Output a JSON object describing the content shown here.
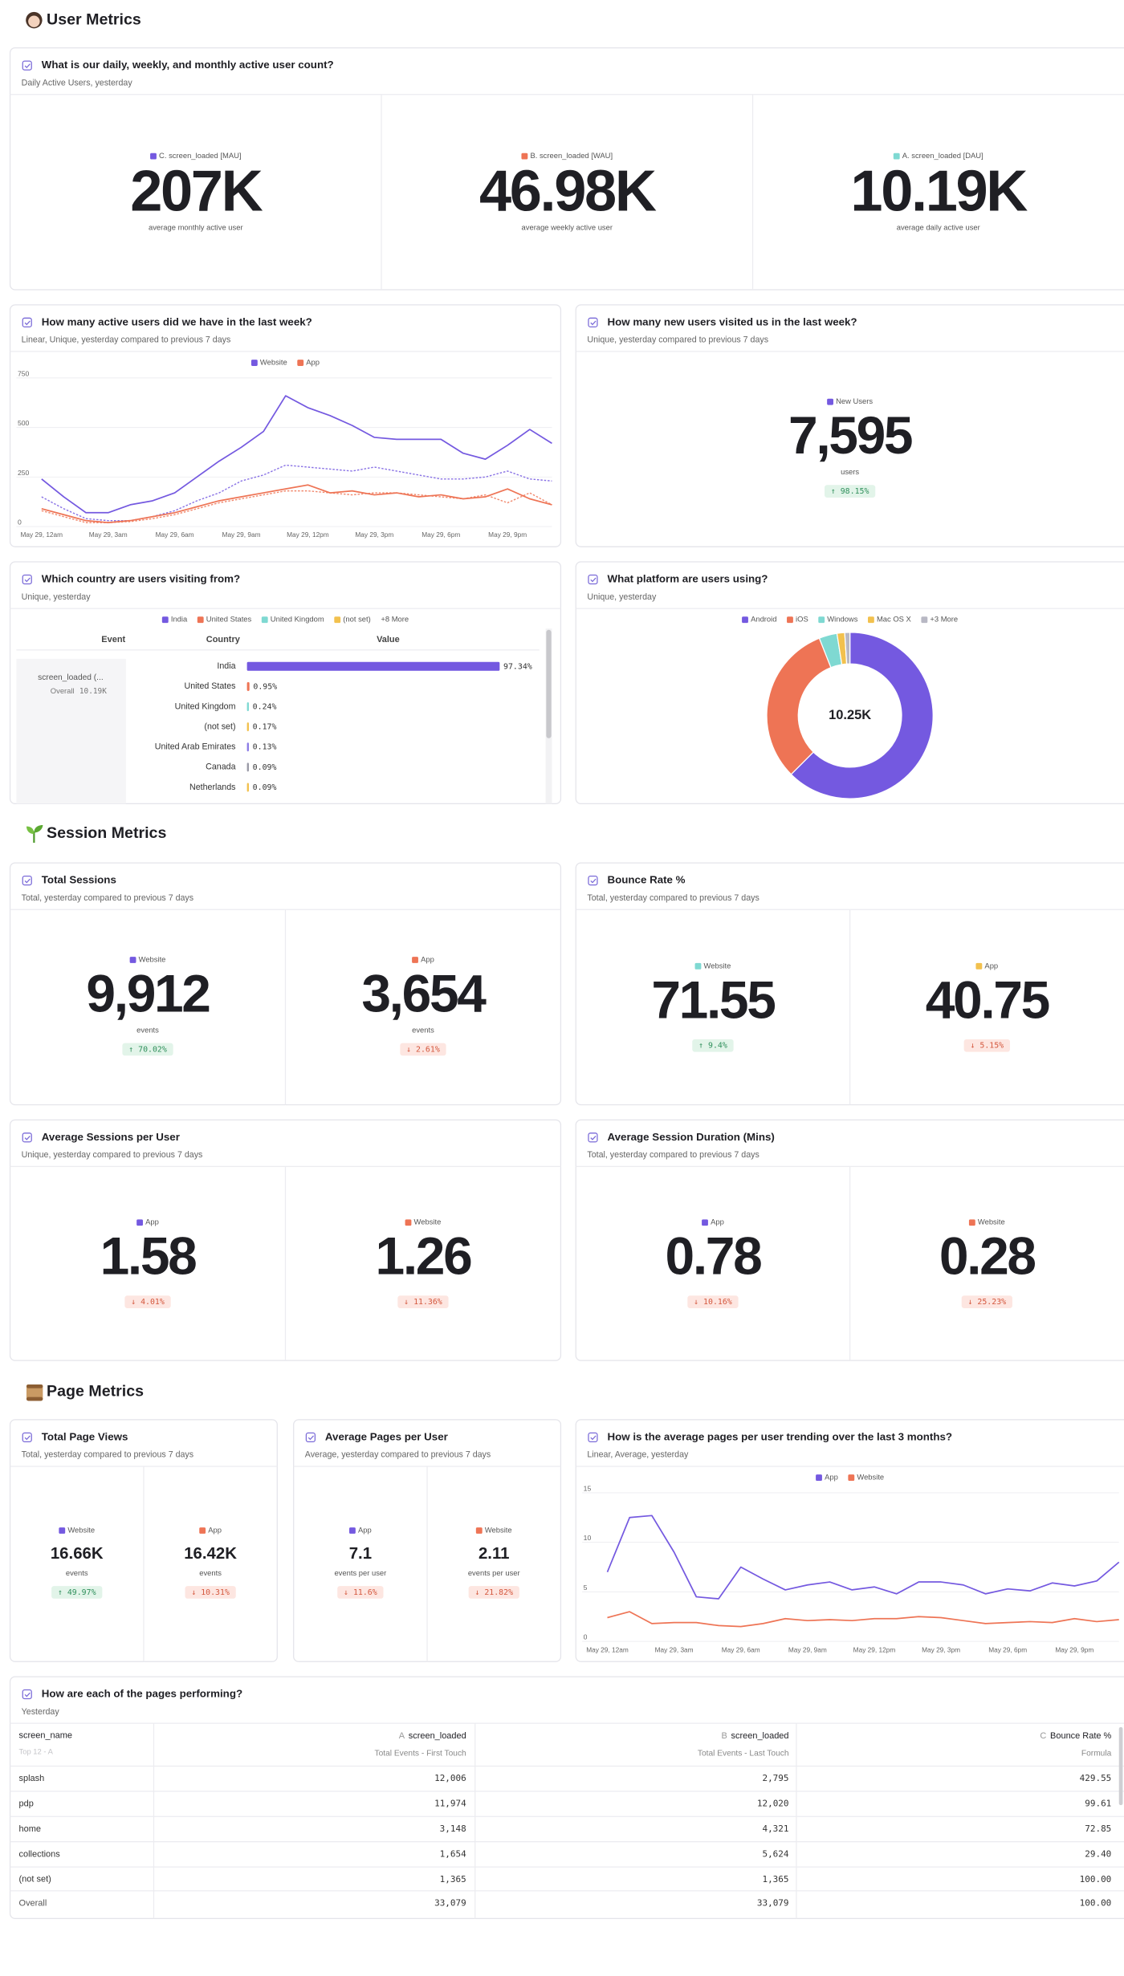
{
  "sections": [
    "User Metrics",
    "Session Metrics",
    "Page Metrics"
  ],
  "cards": [
    {
      "title": "What is our daily, weekly, and monthly active user count?",
      "subtitle": "Daily Active Users, yesterday",
      "metrics": [
        {
          "legend": "C. screen_loaded [MAU]",
          "color": "#7459e0",
          "value": "207K",
          "unit": "average monthly active user"
        },
        {
          "legend": "B. screen_loaded [WAU]",
          "color": "#ee7455",
          "value": "46.98K",
          "unit": "average weekly active user"
        },
        {
          "legend": "A. screen_loaded [DAU]",
          "color": "#7fd9d2",
          "value": "10.19K",
          "unit": "average daily active user"
        }
      ]
    },
    {
      "title": "How many active users did we have in the last week?",
      "subtitle": "Linear, Unique, yesterday compared to previous 7 days",
      "chart": {
        "type": "line",
        "categories": [
          "May 29, 12am",
          null,
          null,
          "May 29, 3am",
          null,
          null,
          "May 29, 6am",
          null,
          null,
          "May 29, 9am",
          null,
          null,
          "May 29, 12pm",
          null,
          null,
          "May 29, 3pm",
          null,
          null,
          "May 29, 6pm",
          null,
          null,
          "May 29, 9pm",
          null,
          null
        ],
        "ylim": [
          0,
          750
        ],
        "yticks": [
          0,
          250,
          500,
          750
        ],
        "grid": true,
        "series": [
          {
            "name": "Website",
            "color": "#7459e0",
            "values": [
              240,
              150,
              70,
              70,
              110,
              130,
              170,
              250,
              330,
              400,
              480,
              660,
              600,
              560,
              510,
              450,
              440,
              440,
              440,
              370,
              340,
              410,
              490,
              420
            ],
            "previous": [
              150,
              90,
              40,
              30,
              30,
              50,
              80,
              130,
              170,
              230,
              260,
              310,
              300,
              290,
              280,
              300,
              280,
              260,
              240,
              240,
              250,
              280,
              240,
              230
            ]
          },
          {
            "name": "App",
            "color": "#ee7455",
            "values": [
              90,
              60,
              30,
              20,
              30,
              50,
              70,
              100,
              130,
              150,
              170,
              190,
              210,
              170,
              180,
              160,
              170,
              150,
              160,
              140,
              150,
              190,
              140,
              110
            ],
            "previous": [
              80,
              50,
              20,
              20,
              25,
              40,
              60,
              90,
              120,
              140,
              160,
              180,
              180,
              170,
              160,
              170,
              170,
              160,
              150,
              140,
              160,
              120,
              170,
              110
            ]
          }
        ]
      }
    },
    {
      "title": "How many new users visited us in the last week?",
      "subtitle": "Unique, yesterday compared to previous 7 days",
      "metrics": [
        {
          "legend": "New Users",
          "color": "#7459e0",
          "value": "7,595",
          "unit": "users",
          "change": "↑ 98.15%",
          "trend": "up"
        }
      ]
    },
    {
      "title": "Which country are users visiting from?",
      "subtitle": "Unique, yesterday",
      "chart": {
        "type": "bar",
        "legend": [
          "India",
          "United States",
          "United Kingdom",
          "(not set)",
          "+8 More"
        ],
        "legend_colors": [
          "#7459e0",
          "#ee7455",
          "#7fd9d2",
          "#f2c14e"
        ],
        "headers": [
          "Event",
          "Country",
          "Value"
        ],
        "event": "screen_loaded (...",
        "overall_label": "Overall",
        "overall_value": "10.19K",
        "categories": [
          "India",
          "United States",
          "United Kingdom",
          "(not set)",
          "United Arab Emirates",
          "Canada",
          "Netherlands"
        ],
        "values": [
          97.34,
          0.95,
          0.24,
          0.17,
          0.13,
          0.09,
          0.09
        ],
        "value_labels": [
          "97.34%",
          "0.95%",
          "0.24%",
          "0.17%",
          "0.13%",
          "0.09%",
          "0.09%"
        ],
        "colors": [
          "#7459e0",
          "#ee7455",
          "#7fd9d2",
          "#f2c14e",
          "#8b7be6",
          "#9a9aa6",
          "#f2c14e"
        ],
        "xlim": [
          0,
          100
        ]
      }
    },
    {
      "title": "What platform are users using?",
      "subtitle": "Unique, yesterday",
      "chart": {
        "type": "pie",
        "categories": [
          "Android",
          "iOS",
          "Windows",
          "Mac OS X",
          "+3 More"
        ],
        "values": [
          62.5,
          31.5,
          3.5,
          1.5,
          1
        ],
        "colors": [
          "#7459e0",
          "#ee7455",
          "#7fd9d2",
          "#f2c14e",
          "#b8b8c4"
        ],
        "center_label": "10.25K"
      }
    },
    {
      "title": "Total Sessions",
      "subtitle": "Total, yesterday compared to previous 7 days",
      "metrics": [
        {
          "legend": "Website",
          "color": "#7459e0",
          "value": "9,912",
          "unit": "events",
          "change": "↑ 70.02%",
          "trend": "up"
        },
        {
          "legend": "App",
          "color": "#ee7455",
          "value": "3,654",
          "unit": "events",
          "change": "↓ 2.61%",
          "trend": "down"
        }
      ]
    },
    {
      "title": "Bounce Rate %",
      "subtitle": "Total, yesterday compared to previous 7 days",
      "metrics": [
        {
          "legend": "Website",
          "color": "#7fd9d2",
          "value": "71.55",
          "change": "↑ 9.4%",
          "trend": "up"
        },
        {
          "legend": "App",
          "color": "#f2c14e",
          "value": "40.75",
          "change": "↓ 5.15%",
          "trend": "down"
        }
      ]
    },
    {
      "title": "Average Sessions per User",
      "subtitle": "Unique, yesterday compared to previous 7 days",
      "metrics": [
        {
          "legend": "App",
          "color": "#7459e0",
          "value": "1.58",
          "change": "↓ 4.01%",
          "trend": "down"
        },
        {
          "legend": "Website",
          "color": "#ee7455",
          "value": "1.26",
          "change": "↓ 11.36%",
          "trend": "down"
        }
      ]
    },
    {
      "title": "Average Session Duration (Mins)",
      "subtitle": "Total, yesterday compared to previous 7 days",
      "metrics": [
        {
          "legend": "App",
          "color": "#7459e0",
          "value": "0.78",
          "change": "↓ 10.16%",
          "trend": "down"
        },
        {
          "legend": "Website",
          "color": "#ee7455",
          "value": "0.28",
          "change": "↓ 25.23%",
          "trend": "down"
        }
      ]
    },
    {
      "title": "Total Page Views",
      "subtitle": "Total, yesterday compared to previous 7 days",
      "metrics": [
        {
          "legend": "Website",
          "color": "#7459e0",
          "value": "16.66K",
          "unit": "events",
          "change": "↑ 49.97%",
          "trend": "up"
        },
        {
          "legend": "App",
          "color": "#ee7455",
          "value": "16.42K",
          "unit": "events",
          "change": "↓ 10.31%",
          "trend": "down"
        }
      ]
    },
    {
      "title": "Average Pages per User",
      "subtitle": "Average, yesterday compared to previous 7 days",
      "metrics": [
        {
          "legend": "App",
          "color": "#7459e0",
          "value": "7.1",
          "unit": "events per user",
          "change": "↓ 11.6%",
          "trend": "down"
        },
        {
          "legend": "Website",
          "color": "#ee7455",
          "value": "2.11",
          "unit": "events per user",
          "change": "↓ 21.82%",
          "trend": "down"
        }
      ]
    },
    {
      "title": "How is the average pages per user trending over the last 3 months?",
      "subtitle": "Linear, Average, yesterday",
      "chart": {
        "type": "line",
        "categories": [
          "May 29, 12am",
          null,
          null,
          "May 29, 3am",
          null,
          null,
          "May 29, 6am",
          null,
          null,
          "May 29, 9am",
          null,
          null,
          "May 29, 12pm",
          null,
          null,
          "May 29, 3pm",
          null,
          null,
          "May 29, 6pm",
          null,
          null,
          "May 29, 9pm",
          null,
          null
        ],
        "ylim": [
          0,
          15
        ],
        "yticks": [
          0,
          5,
          10,
          15
        ],
        "grid": true,
        "series": [
          {
            "name": "App",
            "color": "#7459e0",
            "values": [
              7,
              12.5,
              12.7,
              9,
              4.5,
              4.3,
              7.5,
              6.3,
              5.2,
              5.7,
              6,
              5.2,
              5.5,
              4.8,
              6,
              6,
              5.7,
              4.8,
              5.3,
              5.1,
              5.9,
              5.6,
              6.1,
              8
            ]
          },
          {
            "name": "Website",
            "color": "#ee7455",
            "values": [
              2.4,
              3,
              1.8,
              1.9,
              1.9,
              1.6,
              1.5,
              1.8,
              2.3,
              2.1,
              2.2,
              2.1,
              2.3,
              2.3,
              2.5,
              2.4,
              2.1,
              1.8,
              1.9,
              2,
              1.9,
              2.3,
              2,
              2.2
            ]
          }
        ]
      }
    },
    {
      "title": "How are each of the pages performing?",
      "subtitle": "Yesterday",
      "table": {
        "columns": [
          {
            "name": "screen_name",
            "note": "Top 12 - A"
          },
          {
            "letter": "A",
            "name": "screen_loaded",
            "note": "Total Events - First Touch"
          },
          {
            "letter": "B",
            "name": "screen_loaded",
            "note": "Total Events - Last Touch"
          },
          {
            "letter": "C",
            "name": "Bounce Rate %",
            "note": "Formula"
          }
        ],
        "rows": [
          [
            "splash",
            "12,006",
            "2,795",
            "429.55"
          ],
          [
            "pdp",
            "11,974",
            "12,020",
            "99.61"
          ],
          [
            "home",
            "3,148",
            "4,321",
            "72.85"
          ],
          [
            "collections",
            "1,654",
            "5,624",
            "29.40"
          ],
          [
            "(not set)",
            "1,365",
            "1,365",
            "100.00"
          ]
        ],
        "footer": [
          "Overall",
          "33,079",
          "33,079",
          "100.00"
        ]
      }
    }
  ]
}
